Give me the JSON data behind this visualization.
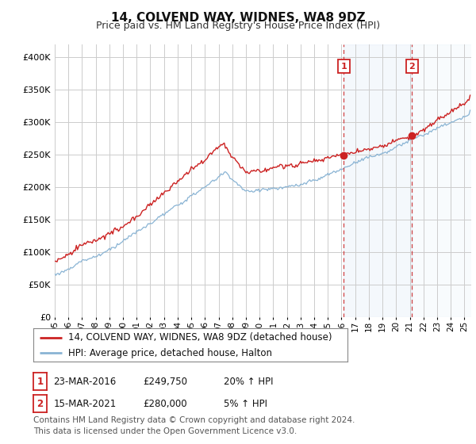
{
  "title": "14, COLVEND WAY, WIDNES, WA8 9DZ",
  "subtitle": "Price paid vs. HM Land Registry's House Price Index (HPI)",
  "ylim": [
    0,
    420000
  ],
  "yticks": [
    0,
    50000,
    100000,
    150000,
    200000,
    250000,
    300000,
    350000,
    400000
  ],
  "hpi_color": "#8ab4d4",
  "price_color": "#cc2222",
  "vline_color": "#cc2222",
  "marker1_price": 249750,
  "marker2_price": 280000,
  "marker1_date_str": "23-MAR-2016",
  "marker2_date_str": "15-MAR-2021",
  "marker1_pct": "20% ↑ HPI",
  "marker2_pct": "5% ↑ HPI",
  "legend_property_label": "14, COLVEND WAY, WIDNES, WA8 9DZ (detached house)",
  "legend_hpi_label": "HPI: Average price, detached house, Halton",
  "footnote": "Contains HM Land Registry data © Crown copyright and database right 2024.\nThis data is licensed under the Open Government Licence v3.0.",
  "bg_color": "#ffffff",
  "plot_bg_color": "#ffffff",
  "grid_color": "#cccccc",
  "title_fontsize": 11,
  "subtitle_fontsize": 9,
  "tick_fontsize": 8,
  "legend_fontsize": 8.5,
  "footnote_fontsize": 7.5
}
